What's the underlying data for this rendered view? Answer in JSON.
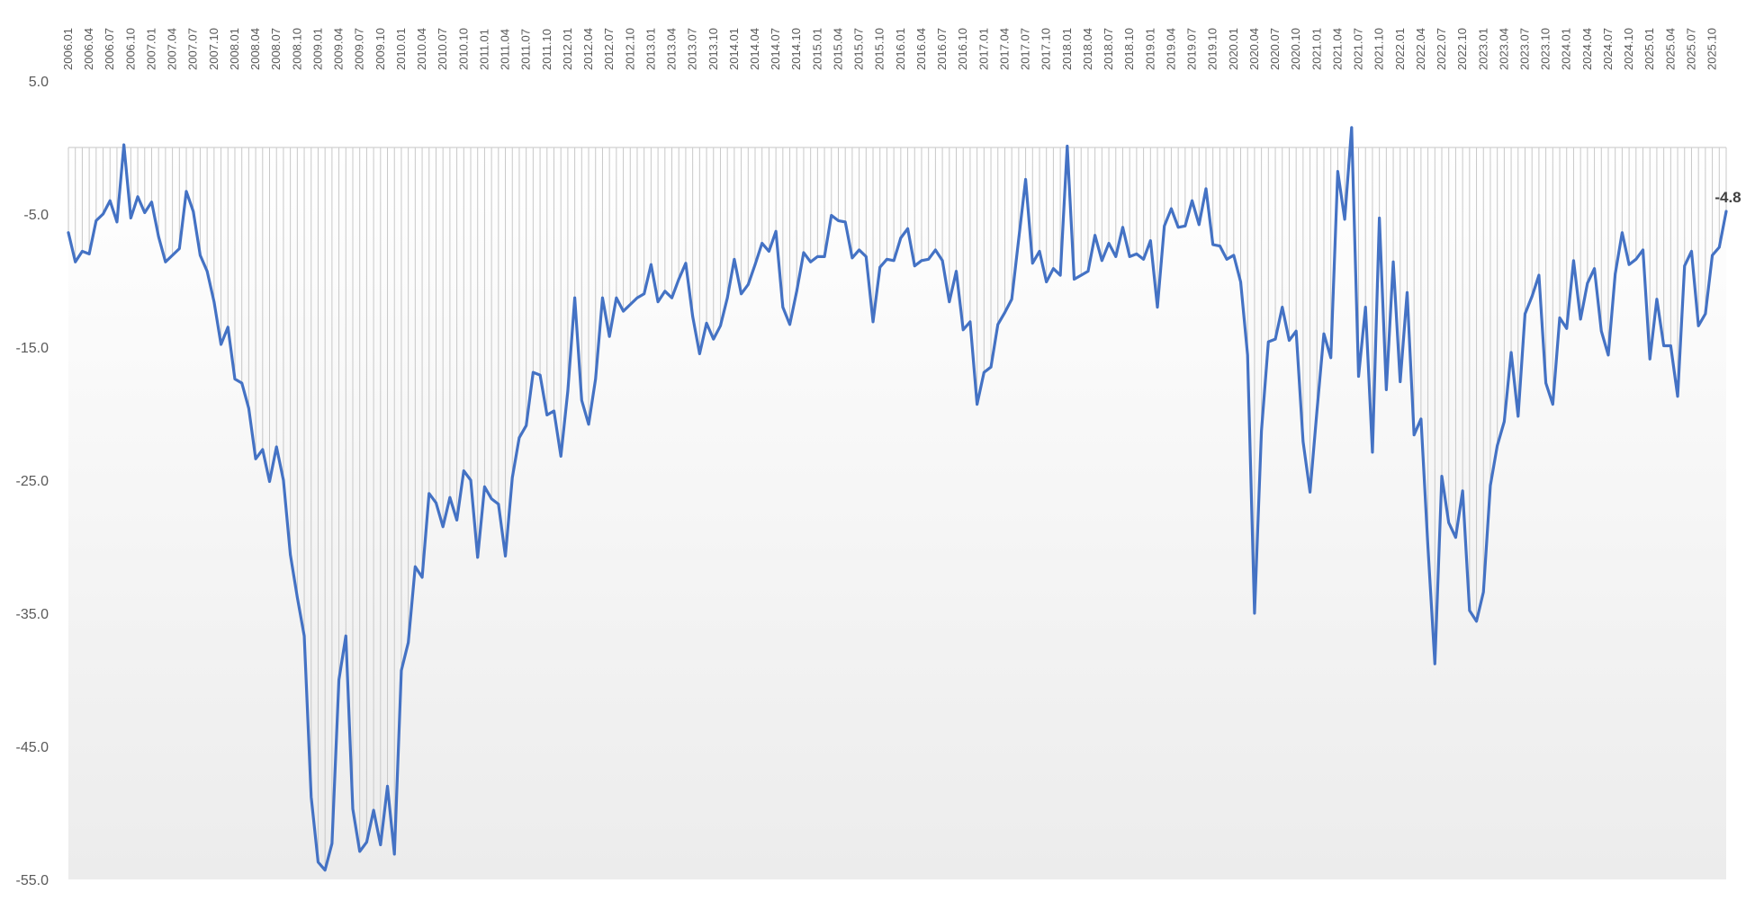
{
  "chart_data": {
    "type": "area",
    "title": "",
    "xlabel": "",
    "ylabel": "",
    "ylim": [
      -55,
      5
    ],
    "y_ticks": [
      "5.0",
      "-5.0",
      "-15.0",
      "-25.0",
      "-35.0",
      "-45.0",
      "-55.0"
    ],
    "x_axis_position": "top",
    "grid": "vertical drop lines per month",
    "legend": "none",
    "colors": {
      "line": "#4472c4",
      "drop_lines": "#c8c8c8",
      "zero_line": "#d0d0d0",
      "fill_top": "#ffffff",
      "fill_bottom": "#ededed"
    },
    "x_start": "2006.01",
    "x_tick_labels": [
      "2006.01",
      "2006.04",
      "2006.07",
      "2006.10",
      "2007.01",
      "2007.04",
      "2007.07",
      "2007.10",
      "2008.01",
      "2008.04",
      "2008.07",
      "2008.10",
      "2009.01",
      "2009.04",
      "2009.07",
      "2009.10",
      "2010.01",
      "2010.04",
      "2010.07",
      "2010.10",
      "2011.01",
      "2011.04",
      "2011.07",
      "2011.10",
      "2012.01",
      "2012.04",
      "2012.07",
      "2012.10",
      "2013.01",
      "2013.04",
      "2013.07",
      "2013.10",
      "2014.01",
      "2014.04",
      "2014.07",
      "2014.10",
      "2015.01",
      "2015.04",
      "2015.07",
      "2015.10",
      "2016.01",
      "2016.04",
      "2016.07",
      "2016.10",
      "2017.01",
      "2017.04",
      "2017.07",
      "2017.10",
      "2018.01",
      "2018.04",
      "2018.07",
      "2018.10",
      "2019.01",
      "2019.04",
      "2019.07",
      "2019.10",
      "2020.01",
      "2020.04",
      "2020.07",
      "2020.10",
      "2021.01",
      "2021.04",
      "2021.07",
      "2021.10",
      "2022.01",
      "2022.04",
      "2022.07",
      "2022.10",
      "2023.01",
      "2023.04",
      "2023.07",
      "2023.10",
      "2024.01",
      "2024.04",
      "2024.07",
      "2024.10",
      "2025.01",
      "2025.04",
      "2025.07",
      "2025.10"
    ],
    "last_value_label": "-4.8",
    "values": [
      -6.4,
      -8.6,
      -7.8,
      -8.0,
      -5.5,
      -5.0,
      -4.0,
      -5.6,
      0.2,
      -5.3,
      -3.7,
      -4.9,
      -4.1,
      -6.7,
      -8.6,
      -8.1,
      -7.6,
      -3.3,
      -4.8,
      -8.1,
      -9.3,
      -11.6,
      -14.8,
      -13.5,
      -17.4,
      -17.7,
      -19.6,
      -23.4,
      -22.7,
      -25.1,
      -22.5,
      -25.0,
      -30.6,
      -33.8,
      -36.7,
      -48.8,
      -53.7,
      -54.3,
      -52.3,
      -40.0,
      -36.7,
      -49.7,
      -52.9,
      -52.2,
      -49.8,
      -52.4,
      -48.0,
      -53.1,
      -39.3,
      -37.2,
      -31.5,
      -32.3,
      -26.0,
      -26.7,
      -28.5,
      -26.3,
      -28.0,
      -24.3,
      -25.0,
      -30.8,
      -25.5,
      -26.4,
      -26.8,
      -30.7,
      -24.8,
      -21.8,
      -20.9,
      -16.9,
      -17.1,
      -20.1,
      -19.8,
      -23.2,
      -18.3,
      -11.3,
      -19.0,
      -20.8,
      -17.4,
      -11.3,
      -14.2,
      -11.3,
      -12.3,
      -11.8,
      -11.3,
      -11.0,
      -8.8,
      -11.6,
      -10.8,
      -11.3,
      -9.9,
      -8.7,
      -12.7,
      -15.5,
      -13.2,
      -14.4,
      -13.4,
      -11.3,
      -8.4,
      -11.0,
      -10.3,
      -8.8,
      -7.2,
      -7.8,
      -6.3,
      -12.0,
      -13.3,
      -10.8,
      -7.9,
      -8.6,
      -8.2,
      -8.2,
      -5.1,
      -5.5,
      -5.6,
      -8.3,
      -7.7,
      -8.2,
      -13.1,
      -9.0,
      -8.4,
      -8.5,
      -6.8,
      -6.1,
      -8.9,
      -8.5,
      -8.4,
      -7.7,
      -8.5,
      -11.6,
      -9.3,
      -13.7,
      -13.1,
      -19.3,
      -16.9,
      -16.5,
      -13.3,
      -12.4,
      -11.4,
      -6.9,
      -2.4,
      -8.7,
      -7.8,
      -10.1,
      -9.1,
      -9.6,
      0.1,
      -9.9,
      -9.6,
      -9.3,
      -6.6,
      -8.5,
      -7.2,
      -8.2,
      -6.0,
      -8.2,
      -8.0,
      -8.4,
      -7.0,
      -12.0,
      -5.9,
      -4.6,
      -6.0,
      -5.9,
      -4.0,
      -5.8,
      -3.1,
      -7.3,
      -7.4,
      -8.4,
      -8.1,
      -10.1,
      -15.6,
      -35.0,
      -21.3,
      -14.6,
      -14.4,
      -12.0,
      -14.5,
      -13.8,
      -22.1,
      -25.9,
      -19.8,
      -14.0,
      -15.8,
      -1.8,
      -5.4,
      1.5,
      -17.2,
      -12.0,
      -22.9,
      -5.3,
      -18.2,
      -8.6,
      -17.6,
      -10.9,
      -21.6,
      -20.4,
      -30.0,
      -38.8,
      -24.7,
      -28.2,
      -29.3,
      -25.8,
      -34.8,
      -35.6,
      -33.4,
      -25.4,
      -22.4,
      -20.6,
      -15.4,
      -20.2,
      -12.5,
      -11.2,
      -9.6,
      -17.7,
      -19.3,
      -12.8,
      -13.6,
      -8.5,
      -12.9,
      -10.2,
      -9.1,
      -13.8,
      -15.6,
      -9.5,
      -6.4,
      -8.8,
      -8.4,
      -7.7,
      -15.9,
      -11.4,
      -14.9,
      -14.9,
      -18.7,
      -8.9,
      -7.8,
      -13.4,
      -12.5,
      -8.1,
      -7.5,
      -4.8
    ]
  }
}
